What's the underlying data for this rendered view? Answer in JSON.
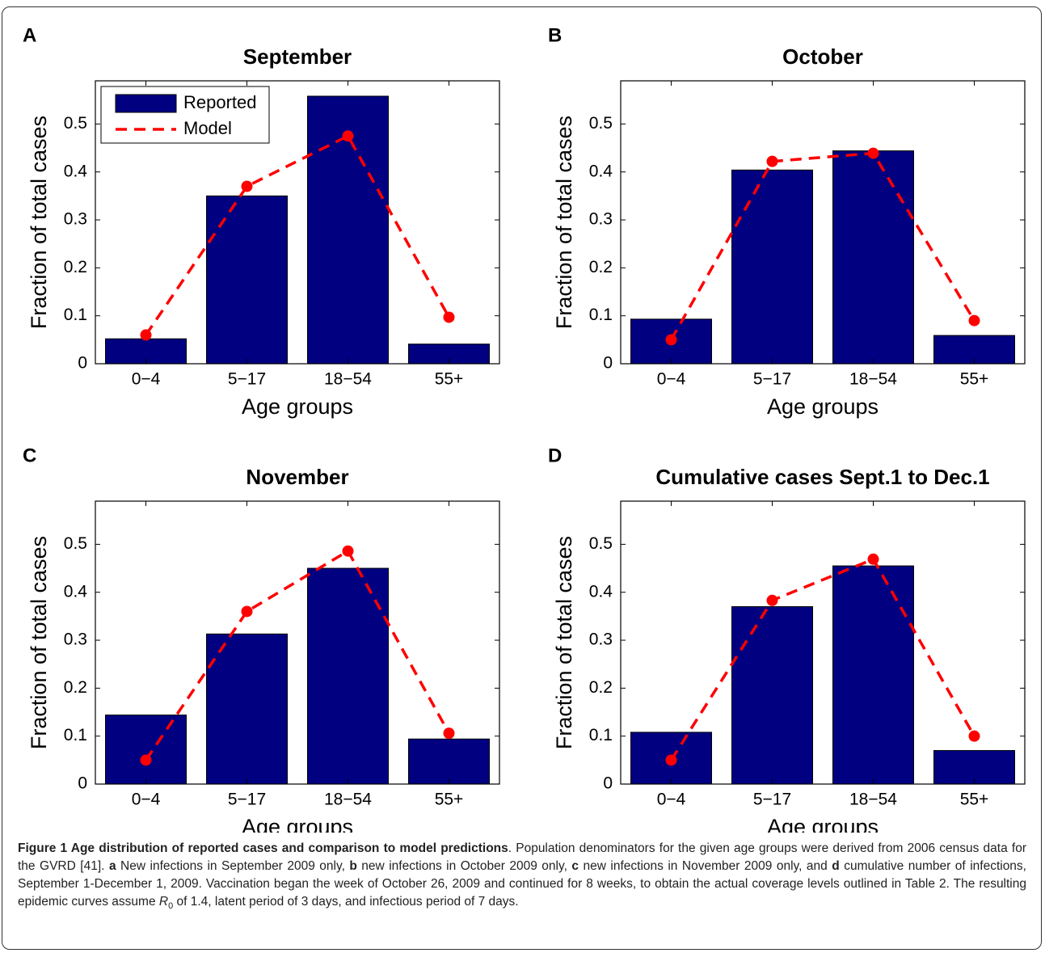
{
  "chart_data": [
    {
      "type": "bar",
      "label": "A",
      "title": "September",
      "xlabel": "Age groups",
      "ylabel": "Fraction of total cases",
      "categories": [
        "0−4",
        "5−17",
        "18−54",
        "55+"
      ],
      "series": [
        {
          "name": "Reported",
          "color": "#000080",
          "values": [
            0.052,
            0.35,
            0.558,
            0.041
          ]
        },
        {
          "name": "Model",
          "color": "#ff0000",
          "type": "line",
          "values": [
            0.06,
            0.37,
            0.475,
            0.097
          ]
        }
      ],
      "ylim": [
        0,
        0.59
      ],
      "yticks": [
        0,
        0.1,
        0.2,
        0.3,
        0.4,
        0.5
      ],
      "legend": "upper left"
    },
    {
      "type": "bar",
      "label": "B",
      "title": "October",
      "xlabel": "Age groups",
      "ylabel": "Fraction of total cases",
      "categories": [
        "0−4",
        "5−17",
        "18−54",
        "55+"
      ],
      "series": [
        {
          "color": "#000080",
          "values": [
            0.093,
            0.404,
            0.444,
            0.059
          ]
        },
        {
          "color": "#ff0000",
          "type": "line",
          "values": [
            0.05,
            0.422,
            0.439,
            0.09
          ]
        }
      ],
      "ylim": [
        0,
        0.59
      ],
      "yticks": [
        0,
        0.1,
        0.2,
        0.3,
        0.4,
        0.5
      ]
    },
    {
      "type": "bar",
      "label": "C",
      "title": "November",
      "xlabel": "Age groups",
      "ylabel": "Fraction of total cases",
      "categories": [
        "0−4",
        "5−17",
        "18−54",
        "55+"
      ],
      "series": [
        {
          "color": "#000080",
          "values": [
            0.144,
            0.313,
            0.45,
            0.094
          ]
        },
        {
          "color": "#ff0000",
          "type": "line",
          "values": [
            0.05,
            0.36,
            0.486,
            0.106
          ]
        }
      ],
      "ylim": [
        0,
        0.59
      ],
      "yticks": [
        0,
        0.1,
        0.2,
        0.3,
        0.4,
        0.5
      ]
    },
    {
      "type": "bar",
      "label": "D",
      "title": "Cumulative cases Sept.1 to Dec.1",
      "xlabel": "Age groups",
      "ylabel": "Fraction of total cases",
      "categories": [
        "0−4",
        "5−17",
        "18−54",
        "55+"
      ],
      "series": [
        {
          "color": "#000080",
          "values": [
            0.108,
            0.37,
            0.455,
            0.07
          ]
        },
        {
          "color": "#ff0000",
          "type": "line",
          "values": [
            0.05,
            0.383,
            0.469,
            0.1
          ]
        }
      ],
      "ylim": [
        0,
        0.59
      ],
      "yticks": [
        0,
        0.1,
        0.2,
        0.3,
        0.4,
        0.5
      ]
    }
  ],
  "caption": [
    {
      "text": "Figure 1 Age distribution of reported cases and comparison to model predictions",
      "style": "bold"
    },
    {
      "text": ". Population denominators for the given age groups were derived from 2006 census data for the GVRD [41]. "
    },
    {
      "text": "a",
      "style": "bold"
    },
    {
      "text": " New infections in September 2009 only, "
    },
    {
      "text": "b",
      "style": "bold"
    },
    {
      "text": " new infections in October 2009 only, "
    },
    {
      "text": "c",
      "style": "bold"
    },
    {
      "text": " new infections in November 2009 only, and "
    },
    {
      "text": "d",
      "style": "bold"
    },
    {
      "text": " cumulative number of infections, September 1-December 1, 2009. Vaccination began the week of October 26, 2009 and continued for 8 weeks, to obtain the actual coverage levels outlined in Table 2. The resulting epidemic curves assume "
    },
    {
      "text": "R",
      "style": "italic"
    },
    {
      "text": "0",
      "style": "sub"
    },
    {
      "text": " of 1.4, latent period of 3 days, and infectious period of 7 days."
    }
  ]
}
